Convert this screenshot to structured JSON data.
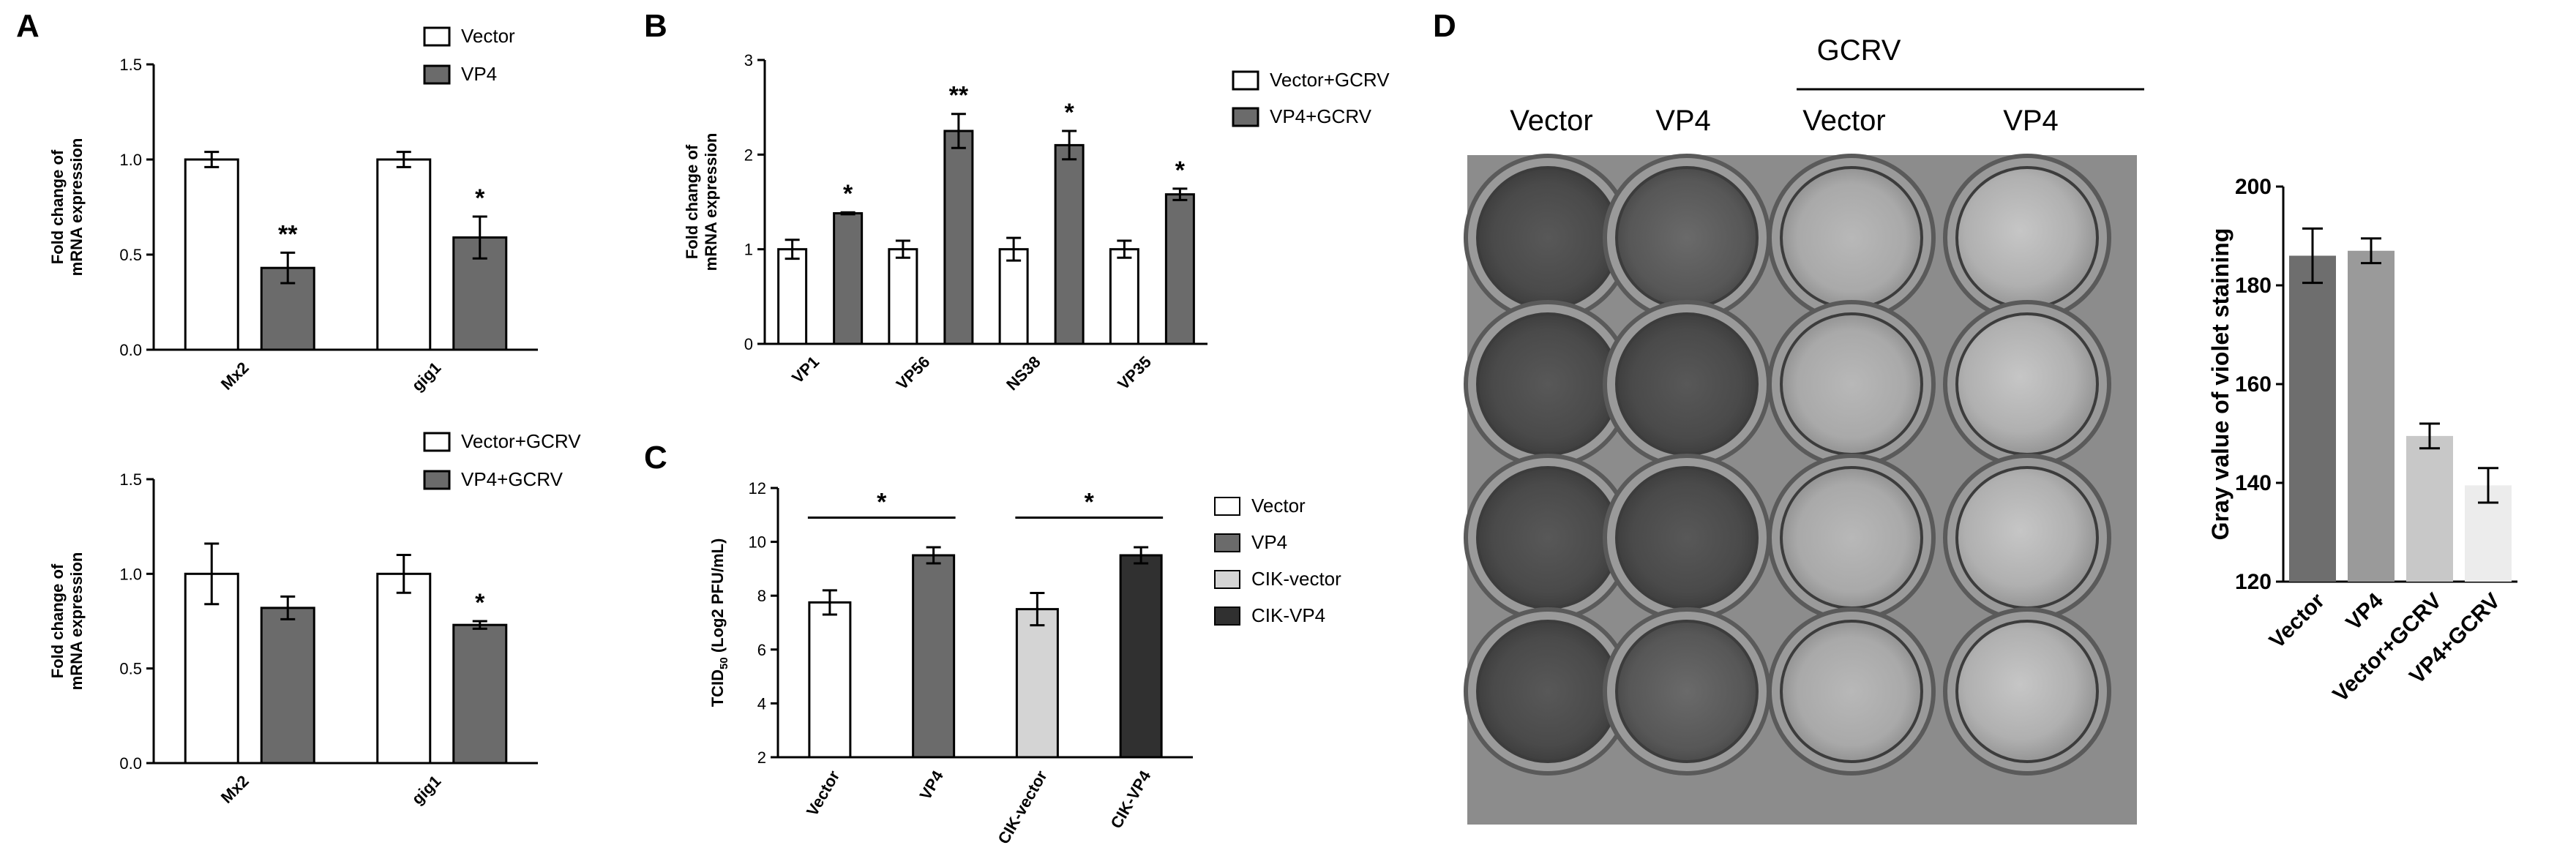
{
  "panel_labels": {
    "A": "A",
    "B": "B",
    "C": "C",
    "D": "D"
  },
  "colors": {
    "vector": "#ffffff",
    "vp4": "#6b6b6b",
    "cik_vector": "#d4d4d4",
    "cik_vp4": "#303030",
    "gray_vector": "#6e6e6e",
    "gray_vp4": "#9a9a9a",
    "gray_vector_gcrv": "#c8c8c8",
    "gray_vp4_gcrv": "#ececec"
  },
  "chart_data": [
    {
      "id": "A1",
      "type": "bar",
      "categories": [
        "Mx2",
        "gig1"
      ],
      "ylabel": [
        "Fold change of",
        "mRNA expression"
      ],
      "ylim": [
        0,
        1.5
      ],
      "yticks": [
        "0.0",
        "0.5",
        "1.0",
        "1.5"
      ],
      "series": [
        {
          "name": "Vector",
          "color": "#ffffff",
          "values": [
            1.0,
            1.0
          ],
          "errors": [
            0.04,
            0.04
          ]
        },
        {
          "name": "VP4",
          "color": "#6b6b6b",
          "values": [
            0.43,
            0.59
          ],
          "errors": [
            0.08,
            0.11
          ]
        }
      ],
      "annotations": [
        "",
        "**",
        "",
        "*"
      ]
    },
    {
      "id": "A2",
      "type": "bar",
      "categories": [
        "Mx2",
        "gig1"
      ],
      "ylabel": [
        "Fold change of",
        "mRNA expression"
      ],
      "ylim": [
        0,
        1.5
      ],
      "yticks": [
        "0.0",
        "0.5",
        "1.0",
        "1.5"
      ],
      "series": [
        {
          "name": "Vector+GCRV",
          "color": "#ffffff",
          "values": [
            1.0,
            1.0
          ],
          "errors": [
            0.16,
            0.1
          ]
        },
        {
          "name": "VP4+GCRV",
          "color": "#6b6b6b",
          "values": [
            0.82,
            0.73
          ],
          "errors": [
            0.06,
            0.02
          ]
        }
      ],
      "annotations": [
        "",
        "",
        "",
        "*"
      ]
    },
    {
      "id": "B",
      "type": "bar",
      "categories": [
        "VP1",
        "VP56",
        "NS38",
        "VP35"
      ],
      "ylabel": [
        "Fold change of",
        "mRNA expression"
      ],
      "ylim": [
        0,
        3
      ],
      "yticks": [
        "0",
        "1",
        "2",
        "3"
      ],
      "series": [
        {
          "name": "Vector+GCRV",
          "color": "#ffffff",
          "values": [
            1.0,
            1.0,
            1.0,
            1.0
          ],
          "errors": [
            0.1,
            0.09,
            0.12,
            0.09
          ]
        },
        {
          "name": "VP4+GCRV",
          "color": "#6b6b6b",
          "values": [
            1.38,
            2.25,
            2.1,
            1.58
          ],
          "errors": [
            0.01,
            0.18,
            0.15,
            0.06
          ]
        }
      ],
      "annotations": [
        "",
        "*",
        "",
        "**",
        "",
        "*",
        "",
        "*"
      ]
    },
    {
      "id": "C",
      "type": "bar",
      "categories": [
        "Vector",
        "VP4",
        "CIK-vector",
        "CIK-VP4"
      ],
      "ylabel": "TCID50 (Log2 PFU/mL)",
      "ylabel_parts": {
        "main": "TCID",
        "sub": "50",
        "rest": " (Log2 PFU/mL)"
      },
      "ylim": [
        2,
        12
      ],
      "yticks": [
        "2",
        "4",
        "6",
        "8",
        "10",
        "12"
      ],
      "values": [
        7.75,
        9.5,
        7.5,
        9.5
      ],
      "errors": [
        0.45,
        0.3,
        0.6,
        0.3
      ],
      "colors": [
        "#ffffff",
        "#6b6b6b",
        "#d4d4d4",
        "#303030"
      ],
      "legend": [
        "Vector",
        "VP4",
        "CIK-vector",
        "CIK-VP4"
      ],
      "significance": [
        {
          "from": 0,
          "to": 1,
          "label": "*"
        },
        {
          "from": 2,
          "to": 3,
          "label": "*"
        }
      ]
    },
    {
      "id": "D",
      "type": "bar",
      "categories": [
        "Vector",
        "VP4",
        "Vector+GCRV",
        "VP4+GCRV"
      ],
      "ylabel": "Gray value of violet staining",
      "ylim": [
        120,
        200
      ],
      "yticks": [
        "120",
        "140",
        "160",
        "180",
        "200"
      ],
      "values": [
        186,
        187,
        149.5,
        139.5
      ],
      "errors": [
        5.5,
        2.5,
        2.5,
        3.5
      ],
      "colors": [
        "#6e6e6e",
        "#9a9a9a",
        "#c8c8c8",
        "#ececec"
      ]
    }
  ],
  "plate": {
    "group_label": "GCRV",
    "column_labels": [
      "Vector",
      "VP4",
      "Vector",
      "VP4"
    ]
  }
}
